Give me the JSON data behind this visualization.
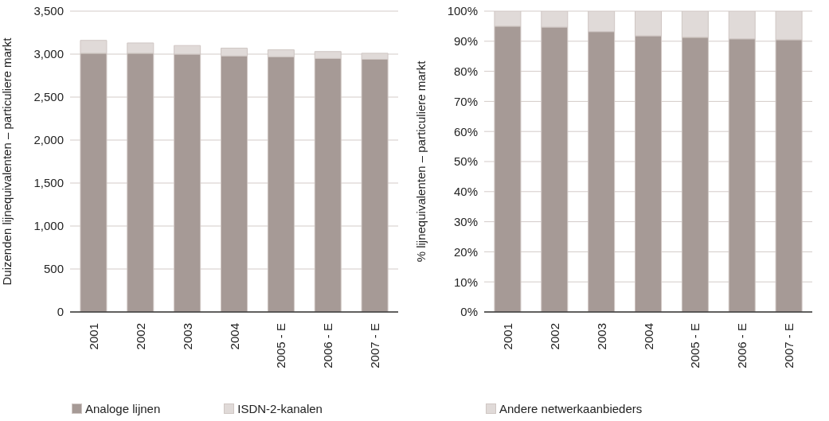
{
  "chart_data": [
    {
      "type": "bar",
      "stacked": true,
      "ylabel": "Duizenden lijnequivalenten – particuliere markt",
      "categories": [
        "2001",
        "2002",
        "2003",
        "2004",
        "2005 - E",
        "2006 - E",
        "2007 - E"
      ],
      "series": [
        {
          "name": "Analoge lijnen",
          "color": "#a69a96",
          "values": [
            3010,
            3010,
            3000,
            2980,
            2970,
            2950,
            2940
          ]
        },
        {
          "name": "ISDN-2-kanalen",
          "color": "#e0dad8",
          "values": [
            150,
            120,
            100,
            90,
            80,
            80,
            70
          ]
        }
      ],
      "ylim": [
        0,
        3500
      ],
      "yticks": [
        0,
        500,
        {
          "value": 1000,
          "label": "1,000"
        },
        {
          "value": 1500,
          "label": "1,500"
        },
        {
          "value": 2000,
          "label": "2,000"
        },
        {
          "value": 2500,
          "label": "2,500"
        },
        {
          "value": 3000,
          "label": "3,000"
        },
        {
          "value": 3500,
          "label": "3,500"
        }
      ],
      "grid": "y",
      "legend": "bottom"
    },
    {
      "type": "bar",
      "stacked": true,
      "ylabel": "% lijnequivalenten – particuliere markt",
      "categories": [
        "2001",
        "2002",
        "2003",
        "2004",
        "2005 - E",
        "2006 - E",
        "2007 - E"
      ],
      "series": [
        {
          "color": "#a69a96",
          "values": [
            95,
            94.7,
            93.2,
            91.8,
            91.3,
            90.8,
            90.5
          ]
        },
        {
          "name": "Andere netwerkaanbieders",
          "color": "#e0dad8",
          "values": [
            5,
            5.3,
            6.8,
            8.2,
            8.7,
            9.2,
            9.5
          ]
        }
      ],
      "ylim": [
        0,
        100
      ],
      "yticks": [
        {
          "value": 0,
          "label": "0%"
        },
        {
          "value": 10,
          "label": "10%"
        },
        {
          "value": 20,
          "label": "20%"
        },
        {
          "value": 30,
          "label": "30%"
        },
        {
          "value": 40,
          "label": "40%"
        },
        {
          "value": 50,
          "label": "50%"
        },
        {
          "value": 60,
          "label": "60%"
        },
        {
          "value": 70,
          "label": "70%"
        },
        {
          "value": 80,
          "label": "80%"
        },
        {
          "value": 90,
          "label": "90%"
        },
        {
          "value": 100,
          "label": "100%"
        }
      ],
      "grid": "y",
      "legend": "bottom"
    }
  ]
}
